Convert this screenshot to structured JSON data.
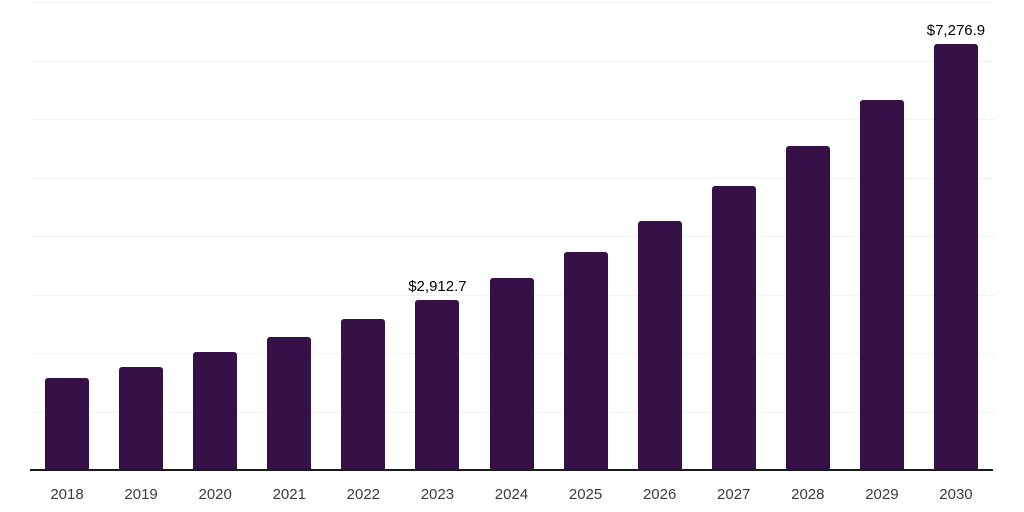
{
  "chart_data": {
    "type": "bar",
    "title": "",
    "xlabel": "",
    "ylabel": "",
    "categories": [
      "2018",
      "2019",
      "2020",
      "2021",
      "2022",
      "2023",
      "2024",
      "2025",
      "2026",
      "2027",
      "2028",
      "2029",
      "2030"
    ],
    "values": [
      1580,
      1760,
      2010,
      2270,
      2580,
      2912.7,
      3290,
      3720,
      4250,
      4850,
      5530,
      6330,
      7276.9
    ],
    "point_labels": [
      "",
      "",
      "",
      "",
      "",
      "$2,912.7",
      "",
      "",
      "",
      "",
      "",
      "",
      "$7,276.9"
    ],
    "ylim": [
      0,
      8000
    ],
    "gridline_values": [
      1000,
      2000,
      3000,
      4000,
      5000,
      6000,
      7000,
      8000
    ],
    "grid": true,
    "legend": false,
    "colors": {
      "bar": "#351147",
      "axis_line": "#1a1a1a",
      "gridline": "#f2f2f2",
      "tick_label": "#3c3c3c",
      "data_label": "#000000",
      "background": "#ffffff"
    }
  }
}
